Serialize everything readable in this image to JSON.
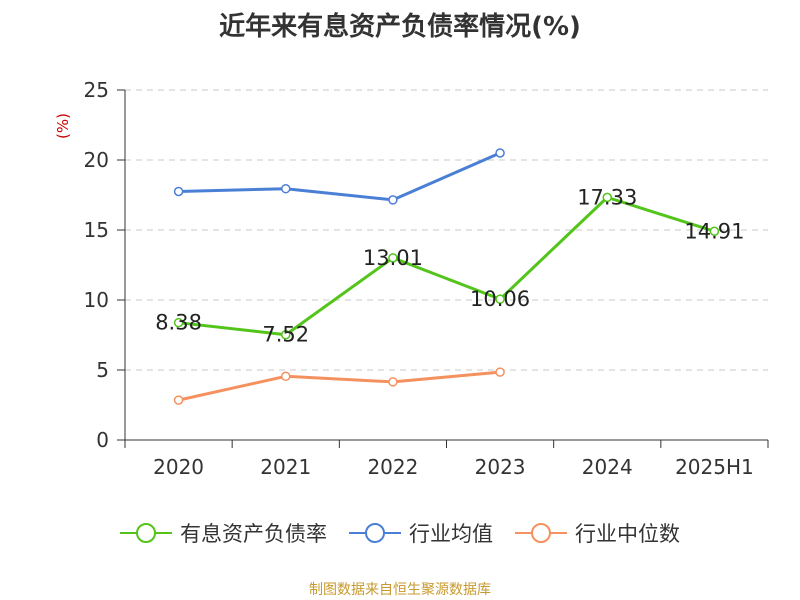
{
  "chart_data": {
    "type": "line",
    "title": "近年来有息资产负债率情况(%)",
    "ylabel": "(%)",
    "xlabel": "",
    "categories": [
      "2020",
      "2021",
      "2022",
      "2023",
      "2024",
      "2025H1"
    ],
    "ylim": [
      0,
      25
    ],
    "yticks": [
      0,
      5,
      10,
      15,
      20,
      25
    ],
    "grid": true,
    "legend_position": "bottom",
    "series": [
      {
        "name": "有息资产负债率",
        "color": "#52c41a",
        "values": [
          8.38,
          7.52,
          13.01,
          10.06,
          17.33,
          14.91
        ],
        "data_labels": [
          "8.38",
          "7.52",
          "13.01",
          "10.06",
          "17.33",
          "14.91"
        ]
      },
      {
        "name": "行业均值",
        "color": "#4a7fd6",
        "values": [
          17.75,
          17.95,
          17.15,
          20.5,
          null,
          null
        ]
      },
      {
        "name": "行业中位数",
        "color": "#f5915e",
        "values": [
          2.85,
          4.55,
          4.15,
          4.85,
          null,
          null
        ]
      }
    ]
  },
  "footer": "制图数据来自恒生聚源数据库"
}
